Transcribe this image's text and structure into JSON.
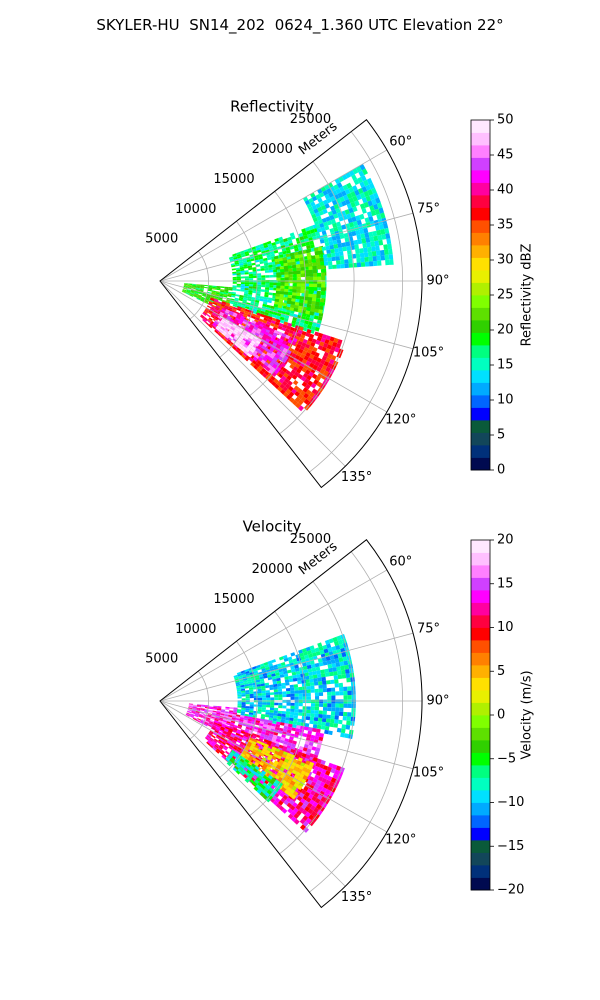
{
  "title": "SKYLER-HU  SN14_202  0624_1.360 UTC Elevation 22°",
  "chart_data": [
    {
      "type": "heatmap",
      "projection": "polar-sector",
      "title": "Reflectivity",
      "rlabel": "Meters",
      "range_ticks": [
        5000,
        10000,
        15000,
        20000,
        25000
      ],
      "range_limit": [
        0,
        27000
      ],
      "azimuth_limit": [
        52,
        142
      ],
      "azimuth_ticks": [
        60,
        75,
        90,
        105,
        120,
        135
      ],
      "azimuth_tick_labels": [
        "60°",
        "75°",
        "90°",
        "105°",
        "120°",
        "135°"
      ],
      "grid": true,
      "colorbar": {
        "label": "Reflectivity dBZ",
        "min": 0,
        "max": 50,
        "ticks": [
          0,
          5,
          10,
          15,
          20,
          25,
          30,
          35,
          40,
          45,
          50
        ],
        "palette": [
          "#000a50",
          "#00307a",
          "#12465a",
          "#0a5a3a",
          "#0000ff",
          "#0066ff",
          "#00aaff",
          "#00e0ff",
          "#00ffc0",
          "#00ff80",
          "#00ff00",
          "#30d000",
          "#5ee000",
          "#80ff00",
          "#b0f000",
          "#e8f000",
          "#ffe000",
          "#ffb000",
          "#ff8000",
          "#ff5000",
          "#ff0000",
          "#ff0040",
          "#ff00a0",
          "#ff00ff",
          "#d040ff",
          "#ff80ff",
          "#ffc0ff",
          "#ffe8ff"
        ]
      },
      "regions": [
        {
          "az": [
            95,
            115
          ],
          "r": [
            2500,
            7500
          ],
          "value": 20
        },
        {
          "az": [
            70,
            108
          ],
          "r": [
            7500,
            17000
          ],
          "value": 17
        },
        {
          "az": [
            78,
            102
          ],
          "r": [
            12000,
            17000
          ],
          "value": 22
        },
        {
          "az": [
            60,
            85
          ],
          "r": [
            17000,
            24000
          ],
          "value": 14
        },
        {
          "az": [
            108,
            132
          ],
          "r": [
            5500,
            20000
          ],
          "value": 37
        },
        {
          "az": [
            113,
            129
          ],
          "r": [
            7000,
            15000
          ],
          "value": 43
        },
        {
          "az": [
            120,
            130
          ],
          "r": [
            7500,
            12000
          ],
          "value": 49
        }
      ]
    },
    {
      "type": "heatmap",
      "projection": "polar-sector",
      "title": "Velocity",
      "rlabel": "Meters",
      "range_ticks": [
        5000,
        10000,
        15000,
        20000,
        25000
      ],
      "range_limit": [
        0,
        27000
      ],
      "azimuth_limit": [
        52,
        142
      ],
      "azimuth_ticks": [
        60,
        75,
        90,
        105,
        120,
        135
      ],
      "azimuth_tick_labels": [
        "60°",
        "75°",
        "90°",
        "105°",
        "120°",
        "135°"
      ],
      "grid": true,
      "colorbar": {
        "label": "Velocity (m/s)",
        "min": -20,
        "max": 20,
        "ticks": [
          -20,
          -15,
          -10,
          -5,
          0,
          5,
          10,
          15,
          20
        ],
        "palette": [
          "#000a50",
          "#00307a",
          "#12465a",
          "#0a5a3a",
          "#0000ff",
          "#0066ff",
          "#00aaff",
          "#00e0ff",
          "#00ffc0",
          "#00ff80",
          "#00ff00",
          "#30d000",
          "#5ee000",
          "#80ff00",
          "#b0f000",
          "#e8f000",
          "#ffe000",
          "#ffb000",
          "#ff8000",
          "#ff5000",
          "#ff0000",
          "#ff0040",
          "#ff00a0",
          "#ff00ff",
          "#d040ff",
          "#ff80ff",
          "#ffc0ff",
          "#ffe8ff"
        ]
      },
      "regions": [
        {
          "az": [
            95,
            118
          ],
          "r": [
            3000,
            8000
          ],
          "value": 14
        },
        {
          "az": [
            70,
            100
          ],
          "r": [
            8000,
            20000
          ],
          "value": -9
        },
        {
          "az": [
            100,
            112
          ],
          "r": [
            8000,
            17000
          ],
          "value": 14
        },
        {
          "az": [
            110,
            132
          ],
          "r": [
            6000,
            20000
          ],
          "value": 12
        },
        {
          "az": [
            112,
            126
          ],
          "r": [
            10000,
            17000
          ],
          "value": 4
        },
        {
          "az": [
            124,
            133
          ],
          "r": [
            9000,
            15000
          ],
          "value": -7
        }
      ]
    }
  ]
}
